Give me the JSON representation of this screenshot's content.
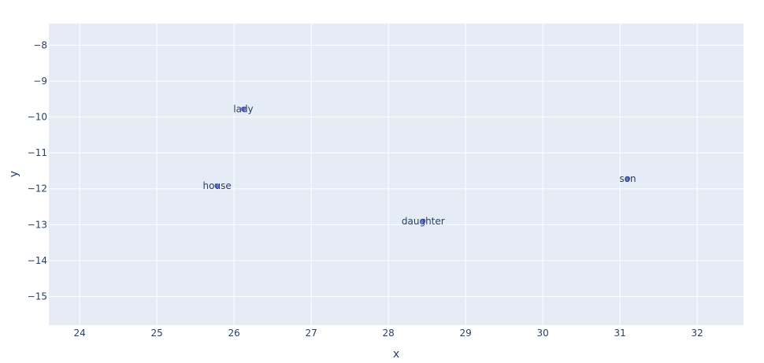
{
  "chart_data": {
    "type": "scatter",
    "title": "",
    "xlabel": "x",
    "ylabel": "y",
    "xlim": [
      23.6,
      32.6
    ],
    "ylim": [
      -15.8,
      -7.4
    ],
    "x_ticks": [
      24,
      25,
      26,
      27,
      28,
      29,
      30,
      31,
      32
    ],
    "y_ticks": [
      -8,
      -9,
      -10,
      -11,
      -12,
      -13,
      -14,
      -15
    ],
    "y_tick_labels": [
      "−8",
      "−9",
      "−10",
      "−11",
      "−12",
      "−13",
      "−14",
      "−15"
    ],
    "grid": true,
    "plot_background": "#e5ecf6",
    "grid_color": "#ffffff",
    "marker_color": "#636efa",
    "text_color": "#2a3f5f",
    "points": [
      {
        "label": "lady",
        "x": 26.12,
        "y": -9.78
      },
      {
        "label": "house",
        "x": 25.78,
        "y": -11.92
      },
      {
        "label": "daughter",
        "x": 28.45,
        "y": -12.9
      },
      {
        "label": "son",
        "x": 31.1,
        "y": -11.72
      }
    ]
  }
}
